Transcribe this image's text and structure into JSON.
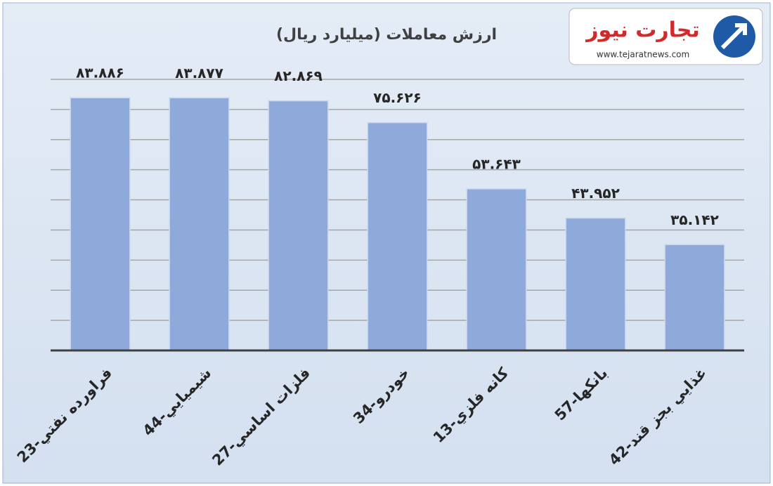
{
  "chart_data": {
    "type": "bar",
    "title": "ارزش معاملات (میلیارد ریال)",
    "categories": [
      "23-فراورده نفتي",
      "44-شيميايي",
      "27-فلزات اساسي",
      "34-خودرو",
      "13-كانه فلزي",
      "57-بانكها",
      "42-غذايي بجز قند"
    ],
    "values": [
      83.886,
      83.877,
      82.869,
      75.626,
      53.643,
      43.952,
      35.142
    ],
    "value_labels": [
      "۸۳.۸۸۶",
      "۸۳.۸۷۷",
      "۸۲.۸۶۹",
      "۷۵.۶۲۶",
      "۵۳.۶۴۳",
      "۴۳.۹۵۲",
      "۳۵.۱۴۲"
    ],
    "color": "#8eaadb",
    "ylim": [
      0,
      90
    ],
    "yticks": [
      0,
      10,
      20,
      30,
      40,
      50,
      60,
      70,
      80,
      90
    ],
    "grid": true
  },
  "logo": {
    "name": "تجارت نیوز",
    "url": "www.tejaratnews.com"
  }
}
